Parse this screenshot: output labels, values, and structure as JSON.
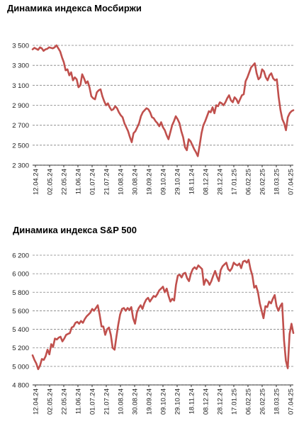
{
  "colors": {
    "line": "#c0504d",
    "grid": "#808080",
    "axis": "#000000"
  },
  "chart_data": [
    {
      "type": "line",
      "title": "Динамика индекса Мосбиржи",
      "xlabel": "",
      "ylabel": "",
      "ylim": [
        2300,
        3500
      ],
      "yticks": [
        2300,
        2500,
        2700,
        2900,
        3100,
        3300,
        3500
      ],
      "ytick_labels": [
        "2 300",
        "2 500",
        "2 700",
        "2 900",
        "3 100",
        "3 300",
        "3 500"
      ],
      "grid": "horizontal dashed",
      "x_tick_labels": [
        "12.04.24",
        "02.05.24",
        "22.05.24",
        "11.06.24",
        "01.07.24",
        "21.07.24",
        "10.08.24",
        "30.08.24",
        "19.09.24",
        "09.10.24",
        "29.10.24",
        "18.11.24",
        "08.12.24",
        "28.12.24",
        "17.01.25",
        "06.02.25",
        "26.02.25",
        "18.03.25",
        "07.04.25"
      ],
      "series": [
        {
          "values": [
            3460,
            3475,
            3465,
            3455,
            3480,
            3470,
            3445,
            3460,
            3465,
            3480,
            3475,
            3470,
            3480,
            3500,
            3470,
            3440,
            3380,
            3330,
            3250,
            3260,
            3200,
            3230,
            3150,
            3180,
            3160,
            3080,
            3100,
            3210,
            3170,
            3120,
            3140,
            3080,
            2990,
            2970,
            2960,
            3030,
            3050,
            3060,
            2990,
            2940,
            2900,
            2920,
            2880,
            2850,
            2860,
            2890,
            2870,
            2830,
            2800,
            2780,
            2720,
            2680,
            2640,
            2580,
            2530,
            2620,
            2640,
            2680,
            2720,
            2790,
            2830,
            2850,
            2870,
            2860,
            2830,
            2780,
            2770,
            2740,
            2720,
            2690,
            2730,
            2680,
            2650,
            2600,
            2560,
            2630,
            2700,
            2740,
            2790,
            2760,
            2720,
            2640,
            2580,
            2480,
            2450,
            2560,
            2540,
            2500,
            2460,
            2430,
            2390,
            2500,
            2620,
            2700,
            2740,
            2790,
            2840,
            2830,
            2880,
            2820,
            2900,
            2890,
            2930,
            2920,
            2900,
            2930,
            2970,
            3000,
            2950,
            2930,
            2980,
            2960,
            2920,
            2960,
            3000,
            3010,
            3140,
            3180,
            3230,
            3280,
            3300,
            3320,
            3220,
            3160,
            3180,
            3260,
            3240,
            3180,
            3150,
            3200,
            3220,
            3170,
            3150,
            3160,
            2980,
            2850,
            2760,
            2720,
            2650,
            2780,
            2820,
            2840,
            2850
          ]
        }
      ]
    },
    {
      "type": "line",
      "title": "Динамика индекса S&P 500",
      "xlabel": "",
      "ylabel": "",
      "ylim": [
        4800,
        6200
      ],
      "yticks": [
        4800,
        5000,
        5200,
        5400,
        5600,
        5800,
        6000,
        6200
      ],
      "ytick_labels": [
        "4 800",
        "5 000",
        "5 200",
        "5 400",
        "5 600",
        "5 800",
        "6 000",
        "6 200"
      ],
      "grid": "horizontal dashed",
      "x_tick_labels": [
        "12.04.24",
        "02.05.24",
        "22.05.24",
        "11.06.24",
        "01.07.24",
        "21.07.24",
        "10.08.24",
        "30.08.24",
        "19.09.24",
        "09.10.24",
        "29.10.24",
        "18.11.24",
        "08.12.24",
        "28.12.24",
        "17.01.25",
        "06.02.25",
        "26.02.25",
        "18.03.25",
        "07.04.25"
      ],
      "series": [
        {
          "values": [
            5120,
            5070,
            5030,
            4970,
            5010,
            5080,
            5070,
            5110,
            5180,
            5130,
            5240,
            5210,
            5300,
            5290,
            5310,
            5320,
            5270,
            5300,
            5340,
            5350,
            5360,
            5420,
            5430,
            5470,
            5480,
            5460,
            5490,
            5470,
            5510,
            5540,
            5560,
            5580,
            5620,
            5600,
            5630,
            5660,
            5560,
            5430,
            5430,
            5340,
            5400,
            5420,
            5340,
            5200,
            5180,
            5320,
            5450,
            5560,
            5620,
            5630,
            5600,
            5630,
            5610,
            5640,
            5520,
            5460,
            5580,
            5630,
            5660,
            5620,
            5680,
            5720,
            5740,
            5700,
            5730,
            5760,
            5750,
            5780,
            5820,
            5840,
            5860,
            5800,
            5840,
            5760,
            5700,
            5730,
            5710,
            5880,
            5980,
            5990,
            5960,
            6000,
            6010,
            5950,
            5920,
            6000,
            6050,
            6070,
            6050,
            6090,
            6070,
            6050,
            5880,
            5940,
            5920,
            5880,
            5920,
            5980,
            6030,
            5970,
            5920,
            6040,
            6080,
            6100,
            6120,
            6050,
            6030,
            6060,
            6120,
            6100,
            6090,
            6110,
            6060,
            6130,
            6140,
            6120,
            6150,
            6050,
            5980,
            5850,
            5870,
            5800,
            5680,
            5600,
            5520,
            5650,
            5640,
            5700,
            5680,
            5730,
            5770,
            5650,
            5600,
            5650,
            5680,
            5280,
            5060,
            4980,
            5350,
            5460,
            5360
          ]
        }
      ]
    }
  ]
}
